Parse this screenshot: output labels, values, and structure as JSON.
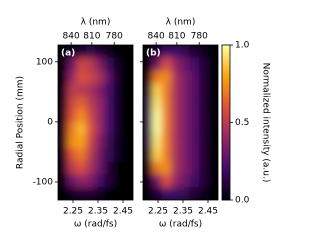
{
  "chart_data": [
    {
      "type": "heatmap",
      "panel_label": "(a)",
      "xlabel": "ω (rad/fs)",
      "ylabel": "Radial Position (mm)",
      "top_xlabel": "λ (nm)",
      "xlim": [
        2.19,
        2.49
      ],
      "ylim": [
        -130,
        128
      ],
      "xticks": [
        2.25,
        2.35,
        2.45
      ],
      "yticks": [
        100,
        0,
        -100
      ],
      "top_xticks": [
        840,
        810,
        780
      ],
      "x": [
        2.209,
        2.246,
        2.284,
        2.321,
        2.359,
        2.396,
        2.434,
        2.471
      ],
      "y": [
        117,
        96,
        74,
        53,
        31,
        10,
        -12,
        -34,
        -55,
        -77,
        -98,
        -120
      ],
      "values": [
        [
          0,
          0.05,
          0.1,
          0.15,
          0.1,
          0.05,
          0,
          0
        ],
        [
          0,
          0.3,
          0.55,
          0.5,
          0.35,
          0.15,
          0.05,
          0
        ],
        [
          0,
          0.4,
          0.6,
          0.55,
          0.45,
          0.25,
          0.05,
          0
        ],
        [
          0.05,
          0.5,
          0.5,
          0.45,
          0.35,
          0.2,
          0.05,
          0
        ],
        [
          0.05,
          0.55,
          0.65,
          0.5,
          0.4,
          0.2,
          0.05,
          0
        ],
        [
          0.05,
          0.6,
          0.75,
          0.55,
          0.4,
          0.2,
          0.05,
          0
        ],
        [
          0.05,
          0.7,
          0.85,
          0.6,
          0.4,
          0.2,
          0.05,
          0
        ],
        [
          0.05,
          0.75,
          0.8,
          0.55,
          0.35,
          0.15,
          0.05,
          0
        ],
        [
          0.05,
          0.6,
          0.7,
          0.5,
          0.3,
          0.15,
          0.05,
          0
        ],
        [
          0.05,
          0.5,
          0.6,
          0.45,
          0.3,
          0.1,
          0,
          0
        ],
        [
          0,
          0.3,
          0.4,
          0.35,
          0.2,
          0.1,
          0,
          0
        ],
        [
          0,
          0.05,
          0.1,
          0.1,
          0.05,
          0,
          0,
          0
        ]
      ]
    },
    {
      "type": "heatmap",
      "panel_label": "(b)",
      "xlabel": "ω (rad/fs)",
      "top_xlabel": "λ (nm)",
      "xlim": [
        2.19,
        2.49
      ],
      "ylim": [
        -130,
        128
      ],
      "xticks": [
        2.25,
        2.35,
        2.45
      ],
      "top_xticks": [
        840,
        810,
        780
      ],
      "x": [
        2.209,
        2.246,
        2.284,
        2.321,
        2.359,
        2.396,
        2.434,
        2.471
      ],
      "y": [
        117,
        96,
        74,
        53,
        31,
        10,
        -12,
        -34,
        -55,
        -77,
        -98,
        -120
      ],
      "values": [
        [
          0,
          0.1,
          0.2,
          0.2,
          0.15,
          0.1,
          0.05,
          0
        ],
        [
          0,
          0.3,
          0.6,
          0.4,
          0.3,
          0.2,
          0.1,
          0
        ],
        [
          0.05,
          0.7,
          0.75,
          0.45,
          0.35,
          0.25,
          0.1,
          0
        ],
        [
          0.1,
          0.9,
          0.7,
          0.45,
          0.35,
          0.25,
          0.1,
          0
        ],
        [
          0.15,
          0.95,
          0.7,
          0.45,
          0.35,
          0.25,
          0.1,
          0
        ],
        [
          0.15,
          1.0,
          0.7,
          0.45,
          0.35,
          0.25,
          0.1,
          0
        ],
        [
          0.15,
          1.0,
          0.7,
          0.45,
          0.35,
          0.25,
          0.1,
          0
        ],
        [
          0.15,
          0.95,
          0.7,
          0.45,
          0.35,
          0.25,
          0.1,
          0
        ],
        [
          0.1,
          0.9,
          0.7,
          0.45,
          0.35,
          0.25,
          0.1,
          0
        ],
        [
          0.05,
          0.7,
          0.75,
          0.45,
          0.35,
          0.25,
          0.1,
          0
        ],
        [
          0,
          0.3,
          0.6,
          0.4,
          0.3,
          0.2,
          0.1,
          0
        ],
        [
          0,
          0.1,
          0.2,
          0.2,
          0.15,
          0.1,
          0.05,
          0
        ]
      ]
    }
  ],
  "colorbar": {
    "label": "Normalized intensity (a.u.)",
    "lim": [
      0,
      1
    ],
    "ticks": [
      {
        "value": 0,
        "label": "0.0"
      },
      {
        "value": 0.5,
        "label": "0.5"
      },
      {
        "value": 1,
        "label": "1.0"
      }
    ],
    "colormap": [
      "#000004",
      "#420a68",
      "#932667",
      "#dd513a",
      "#fca50a",
      "#fcffa4"
    ]
  }
}
